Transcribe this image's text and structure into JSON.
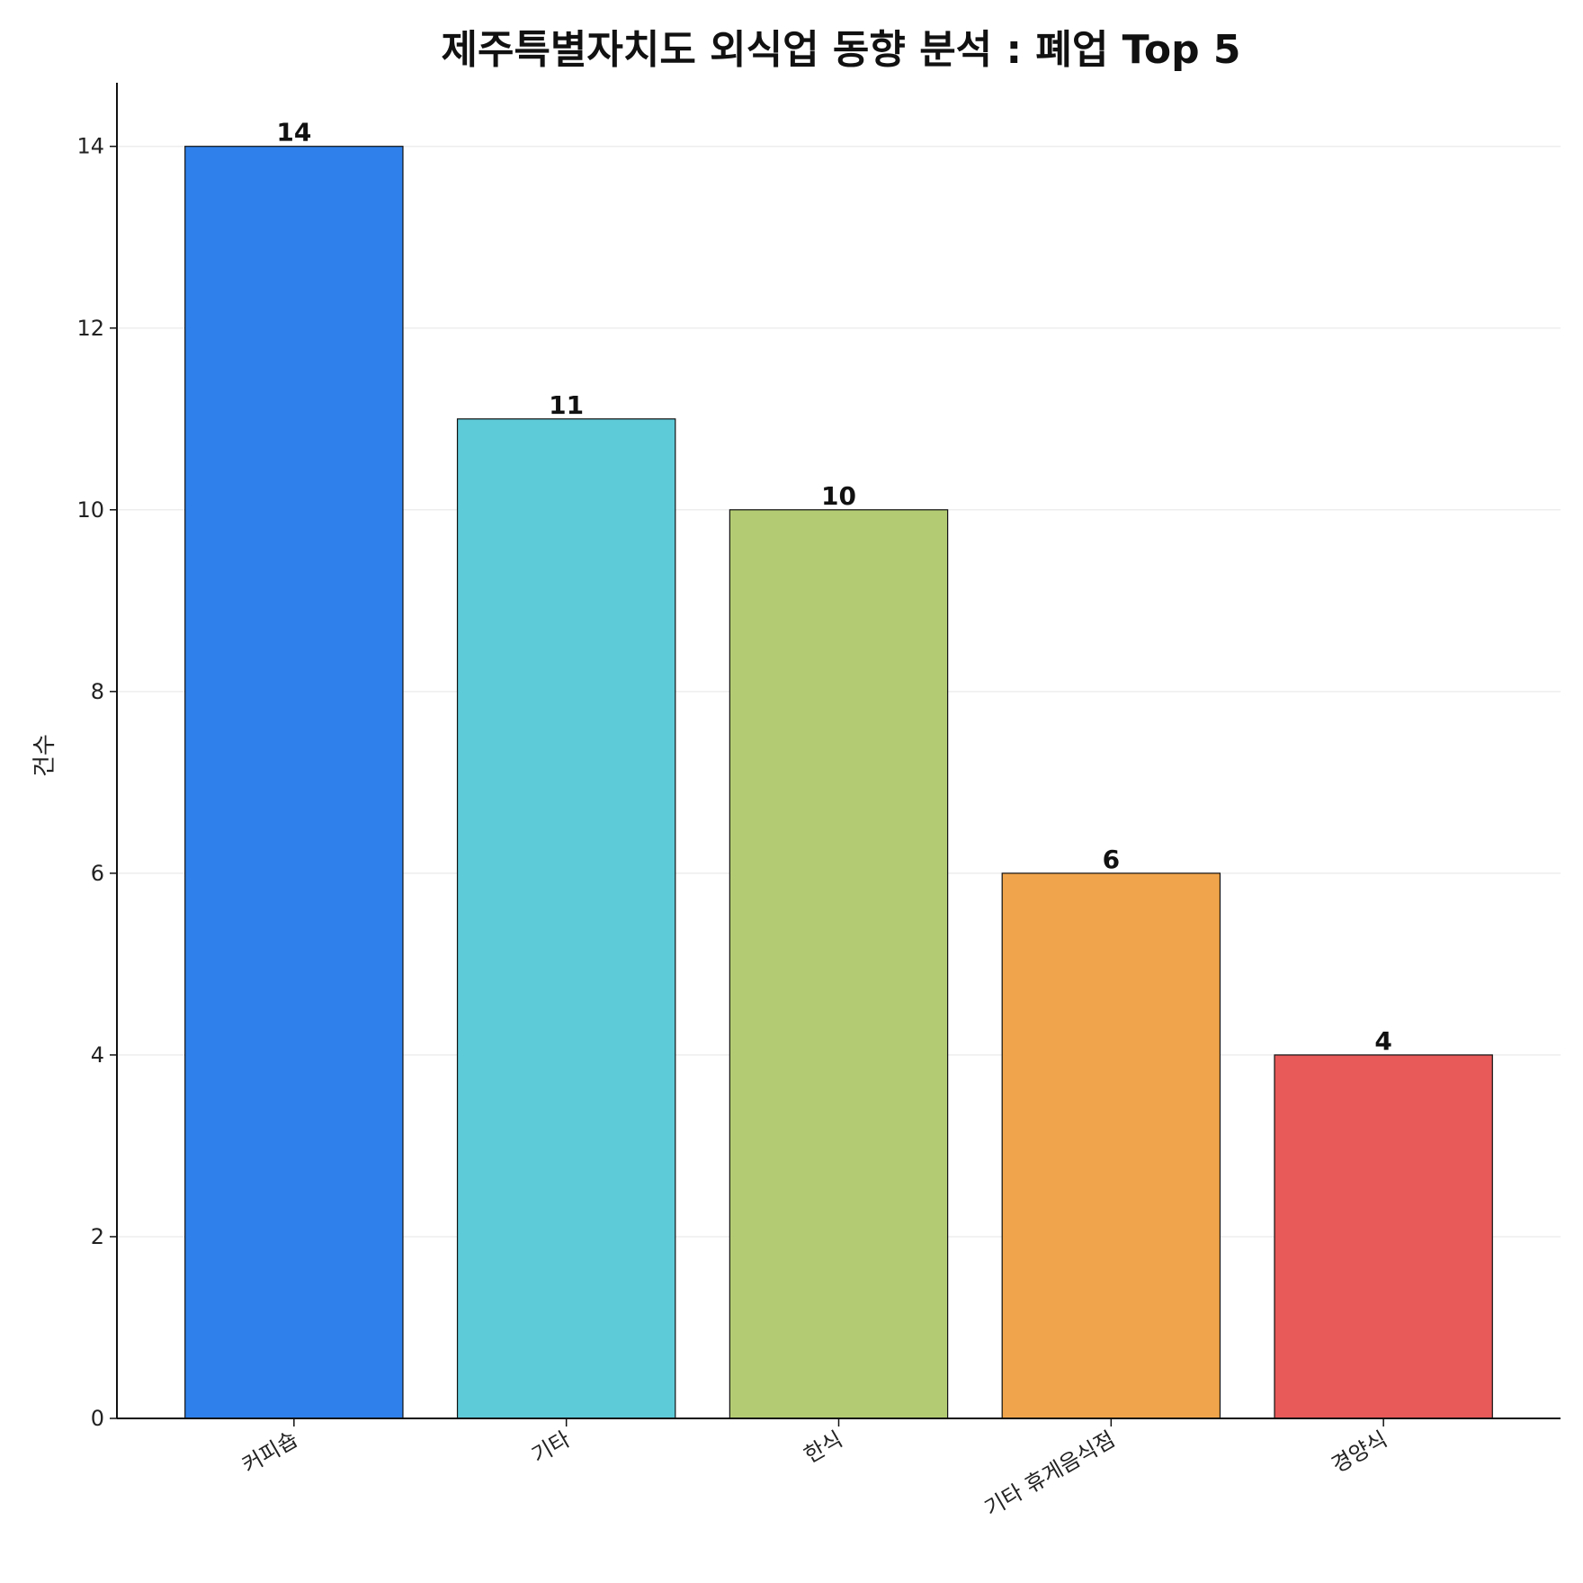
{
  "chart_data": {
    "type": "bar",
    "title": "제주특별자치도 외식업 동향 분석 : 폐업 Top 5",
    "xlabel": "",
    "ylabel": "건수",
    "categories": [
      "커피숍",
      "기타",
      "한식",
      "기타 휴게음식점",
      "경양식"
    ],
    "values": [
      14,
      11,
      10,
      6,
      4
    ],
    "data_labels": [
      "14",
      "11",
      "10",
      "6",
      "4"
    ],
    "colors": [
      "#2f80eb",
      "#5ecbd9",
      "#b3cc73",
      "#f0a44b",
      "#e85959"
    ],
    "ylim": [
      0,
      14.7
    ],
    "yticks": [
      0,
      2,
      4,
      6,
      8,
      10,
      12,
      14
    ],
    "grid": "y-axis, light",
    "legend": "none",
    "xtick_rotation": "slanted"
  }
}
